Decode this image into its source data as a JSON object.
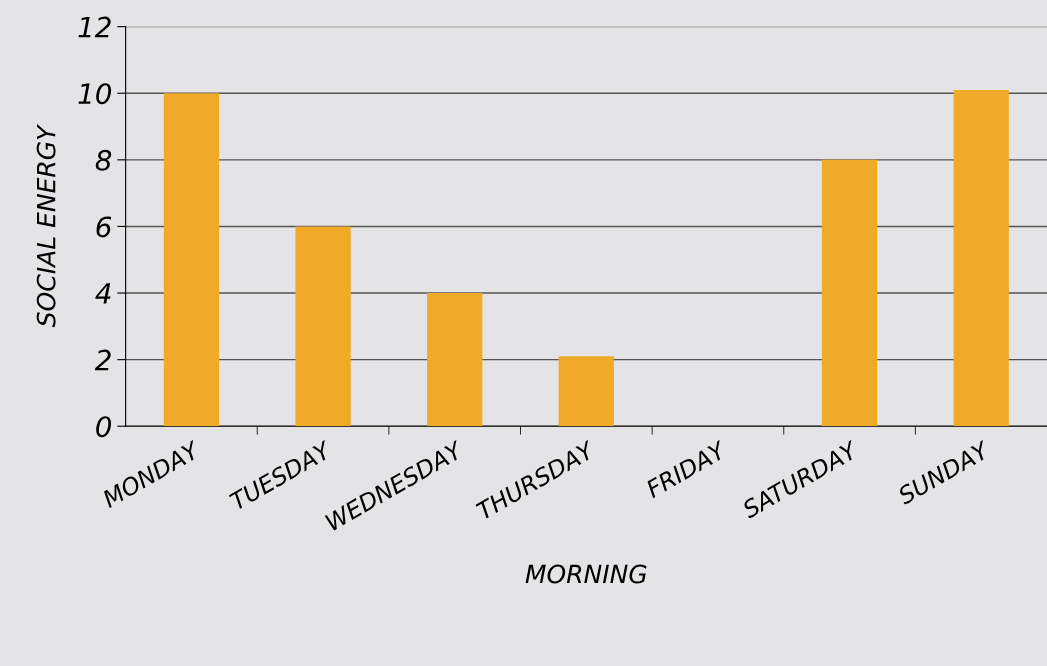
{
  "chart_data": {
    "type": "bar",
    "xlabel": "MORNING",
    "ylabel": "SOCIAL ENERGY",
    "categories": [
      "MONDAY",
      "TUESDAY",
      "WEDNESDAY",
      "THURSDAY",
      "FRIDAY",
      "SATURDAY",
      "SUNDAY"
    ],
    "values": [
      10,
      6,
      4,
      2.1,
      0,
      8,
      10.1
    ],
    "color": "#efaa28",
    "ylim": [
      0,
      12
    ],
    "yticks": [
      0,
      2,
      4,
      6,
      8,
      10,
      12
    ],
    "grid": "y"
  }
}
